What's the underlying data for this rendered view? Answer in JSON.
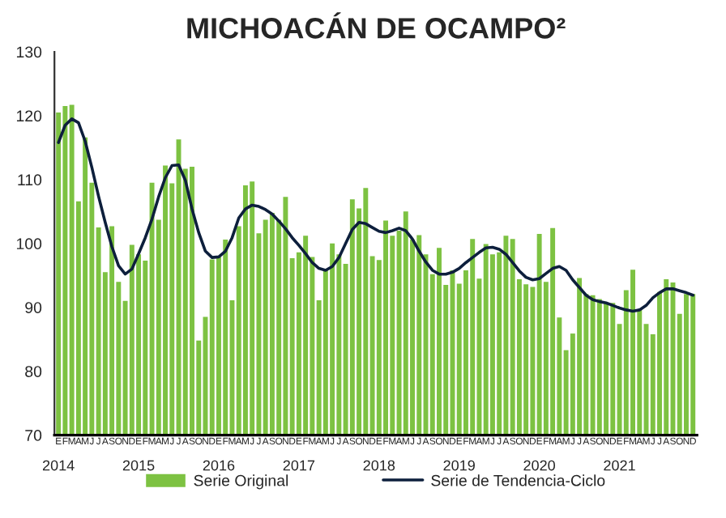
{
  "chart_data": {
    "type": "bar",
    "title": "MICHOACÁN DE OCAMPO²",
    "categories": [
      "E",
      "F",
      "M",
      "A",
      "M",
      "J",
      "J",
      "A",
      "S",
      "O",
      "N",
      "D",
      "E",
      "F",
      "M",
      "A",
      "M",
      "J",
      "J",
      "A",
      "S",
      "O",
      "N",
      "D",
      "E",
      "F",
      "M",
      "A",
      "M",
      "J",
      "J",
      "A",
      "S",
      "O",
      "N",
      "D",
      "E",
      "F",
      "M",
      "A",
      "M",
      "J",
      "J",
      "A",
      "S",
      "O",
      "N",
      "D",
      "E",
      "F",
      "M",
      "A",
      "M",
      "J",
      "J",
      "A",
      "S",
      "O",
      "N",
      "D",
      "E",
      "F",
      "M",
      "A",
      "M",
      "J",
      "J",
      "A",
      "S",
      "O",
      "N",
      "D",
      "E",
      "F",
      "M",
      "A",
      "M",
      "J",
      "J",
      "A",
      "S",
      "O",
      "N",
      "D",
      "E",
      "F",
      "M",
      "A",
      "M",
      "J",
      "J",
      "A",
      "S",
      "O",
      "N",
      "D"
    ],
    "series": [
      {
        "name": "Serie Original",
        "color": "#7dc242",
        "values": [
          120.5,
          121.5,
          121.7,
          106.6,
          116.6,
          109.5,
          102.5,
          95.5,
          102.7,
          94,
          91,
          99.8,
          98.3,
          97.3,
          109.5,
          103.7,
          112.2,
          109.4,
          116.3,
          111.7,
          112,
          84.8,
          88.5,
          97.5,
          97.9,
          100.6,
          91.1,
          102.7,
          109.1,
          109.7,
          101.6,
          103.7,
          104.8,
          103.7,
          107.3,
          97.7,
          98.6,
          101.2,
          97.9,
          91.1,
          95.8,
          100,
          98.3,
          96.8,
          106.9,
          105.5,
          108.7,
          98,
          97.4,
          103.6,
          101.2,
          102,
          105,
          100.6,
          101.3,
          98.3,
          95.2,
          99.3,
          93.5,
          95.8,
          93.7,
          95.8,
          100.7,
          94.5,
          99.9,
          98.3,
          98.6,
          101.2,
          100.7,
          94.4,
          93.6,
          93.2,
          101.5,
          94,
          102.4,
          88.4,
          83.3,
          85.9,
          94.6,
          92.1,
          91.9,
          91.3,
          90.7,
          90.7,
          87.4,
          92.7,
          95.9,
          89.6,
          87.4,
          85.8,
          92.4,
          94.4,
          93.9,
          89,
          92.1,
          92.1
        ]
      },
      {
        "name": "Serie de Tendencia-Ciclo",
        "color": "#0d1f3c",
        "type": "line",
        "values": [
          115.8,
          118.5,
          119.5,
          118.9,
          116,
          111.9,
          107.4,
          103.3,
          99.5,
          96.5,
          95.2,
          96,
          98.4,
          100.9,
          103.8,
          107.3,
          110.3,
          112.2,
          112.3,
          109.9,
          105.4,
          101.7,
          98.8,
          97.8,
          97.9,
          98.8,
          100.9,
          104,
          105.4,
          106,
          105.8,
          105.3,
          104.6,
          103.5,
          102.3,
          100.9,
          99.7,
          98.4,
          97,
          96.1,
          95.8,
          96.4,
          97.8,
          100,
          102.2,
          103.3,
          103.1,
          102.5,
          101.9,
          101.7,
          102,
          102.4,
          102,
          100.7,
          98.8,
          97.1,
          95.8,
          95.2,
          95.2,
          95.5,
          96.1,
          97,
          97.8,
          98.6,
          99.3,
          99.4,
          99.1,
          98.3,
          97,
          95.7,
          94.7,
          94.3,
          94.5,
          95.3,
          96.1,
          96.4,
          95.8,
          94.3,
          93.1,
          91.9,
          91.2,
          90.9,
          90.7,
          90.3,
          89.9,
          89.6,
          89.4,
          89.6,
          90.3,
          91.5,
          92.3,
          92.9,
          92.9,
          92.6,
          92.3,
          91.9
        ]
      }
    ],
    "annotations": [
      "2014",
      "2015",
      "2016",
      "2017",
      "2018",
      "2019",
      "2020",
      "2021"
    ],
    "ylim": [
      70,
      130
    ],
    "yticks": [
      70,
      80,
      90,
      100,
      110,
      120,
      130
    ],
    "grid": false,
    "legend": "bottom",
    "line_style": "solid",
    "marker": "none"
  }
}
